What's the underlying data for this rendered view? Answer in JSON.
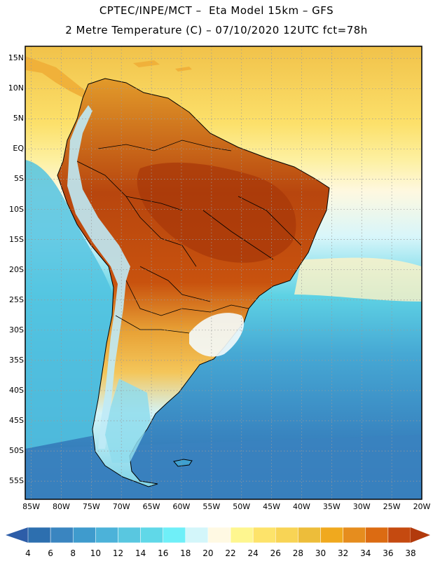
{
  "header": {
    "line1": "CPTEC/INPE/MCT –  Eta Model 15km – GFS",
    "line2": "2 Metre Temperature (C) – 07/10/2020 12UTC fct=78h"
  },
  "map": {
    "lat_labels": [
      "15N",
      "10N",
      "5N",
      "EQ",
      "5S",
      "10S",
      "15S",
      "20S",
      "25S",
      "30S",
      "35S",
      "40S",
      "45S",
      "50S",
      "55S"
    ],
    "lat_values": [
      15,
      10,
      5,
      0,
      -5,
      -10,
      -15,
      -20,
      -25,
      -30,
      -35,
      -40,
      -45,
      -50,
      -55
    ],
    "lon_labels": [
      "85W",
      "80W",
      "75W",
      "70W",
      "65W",
      "60W",
      "55W",
      "50W",
      "45W",
      "40W",
      "35W",
      "30W",
      "25W",
      "20W"
    ],
    "lon_values": [
      -85,
      -80,
      -75,
      -70,
      -65,
      -60,
      -55,
      -50,
      -45,
      -40,
      -35,
      -30,
      -25,
      -20
    ],
    "lat_range": [
      -58,
      17
    ],
    "lon_range": [
      -86,
      -20
    ],
    "variable": "2 Metre Temperature",
    "units": "C"
  },
  "colorbar": {
    "labels": [
      "4",
      "6",
      "8",
      "10",
      "12",
      "14",
      "16",
      "18",
      "20",
      "22",
      "24",
      "26",
      "28",
      "30",
      "32",
      "34",
      "36",
      "38"
    ],
    "colors": [
      "#2d6faf",
      "#3a85c0",
      "#3f9bcd",
      "#4cb2d9",
      "#59c7e0",
      "#60d8e8",
      "#6feff8",
      "#d3f6fa",
      "#fff9e3",
      "#fef68f",
      "#fde36a",
      "#f8d455",
      "#edbd3a",
      "#f0a91e",
      "#e68d1e",
      "#dc6b12",
      "#c54a10"
    ],
    "end_low": "#2d5da8",
    "end_high": "#b23a0c"
  }
}
